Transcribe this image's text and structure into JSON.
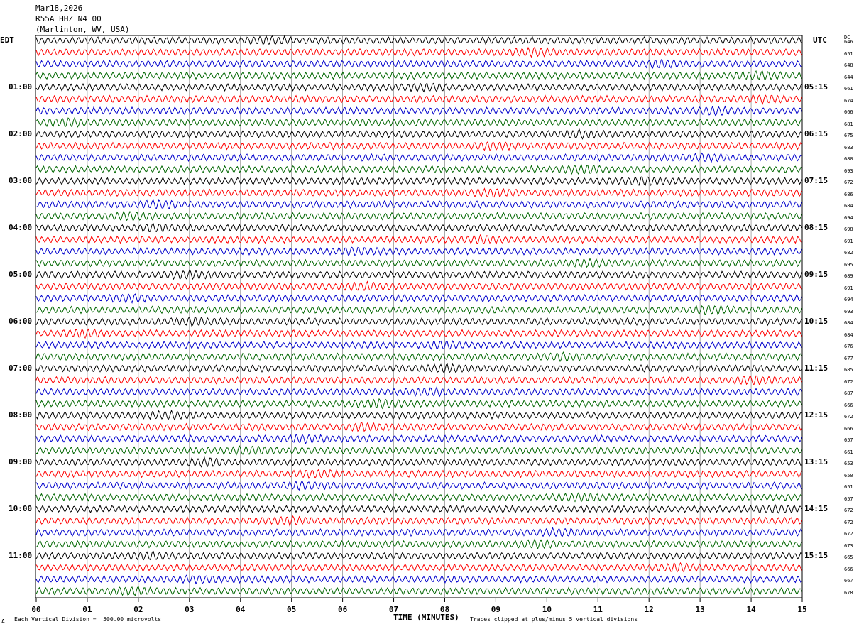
{
  "header": {
    "date": "Mar18,2026",
    "channel": "R55A HHZ N4 00",
    "location": "(Marlinton, WV, USA)"
  },
  "left_axis_title": "EDT",
  "right_axis_title": "UTC",
  "dc_title": "DC",
  "left_hour_labels": [
    "01:00",
    "02:00",
    "03:00",
    "04:00",
    "05:00",
    "06:00",
    "07:00",
    "08:00",
    "09:00",
    "10:00",
    "11:00"
  ],
  "right_hour_labels": [
    "05:15",
    "06:15",
    "07:15",
    "08:15",
    "09:15",
    "10:15",
    "11:15",
    "12:15",
    "13:15",
    "14:15",
    "15:15"
  ],
  "dc_values": [
    "646",
    "651",
    "648",
    "644",
    "661",
    "674",
    "666",
    "681",
    "675",
    "683",
    "680",
    "693",
    "672",
    "686",
    "684",
    "694",
    "698",
    "691",
    "682",
    "695",
    "689",
    "691",
    "694",
    "693",
    "684",
    "684",
    "676",
    "677",
    "685",
    "672",
    "687",
    "666",
    "672",
    "666",
    "657",
    "661",
    "653",
    "650",
    "651",
    "657",
    "672",
    "672",
    "672",
    "673",
    "665",
    "666",
    "667",
    "678"
  ],
  "x_tick_labels": [
    "00",
    "01",
    "02",
    "03",
    "04",
    "05",
    "06",
    "07",
    "08",
    "09",
    "10",
    "11",
    "12",
    "13",
    "14",
    "15"
  ],
  "x_axis_title": "TIME (MINUTES)",
  "footer_left": "Each Vertical Division =  500.00 microvolts",
  "footer_right": "Traces clipped at plus/minus 5 vertical divisions",
  "corner_mark": "A",
  "trace_colors": [
    "#000000",
    "#ff0000",
    "#0000cc",
    "#006600"
  ],
  "chart_data": {
    "type": "line",
    "title": "R55A HHZ N4 00",
    "xlabel": "TIME (MINUTES)",
    "ylabel": "",
    "xlim": [
      0,
      15
    ],
    "num_traces": 48,
    "minutes_per_trace": 15,
    "grid": true,
    "series_colors_cycle": [
      "black",
      "red",
      "blue",
      "green"
    ]
  }
}
